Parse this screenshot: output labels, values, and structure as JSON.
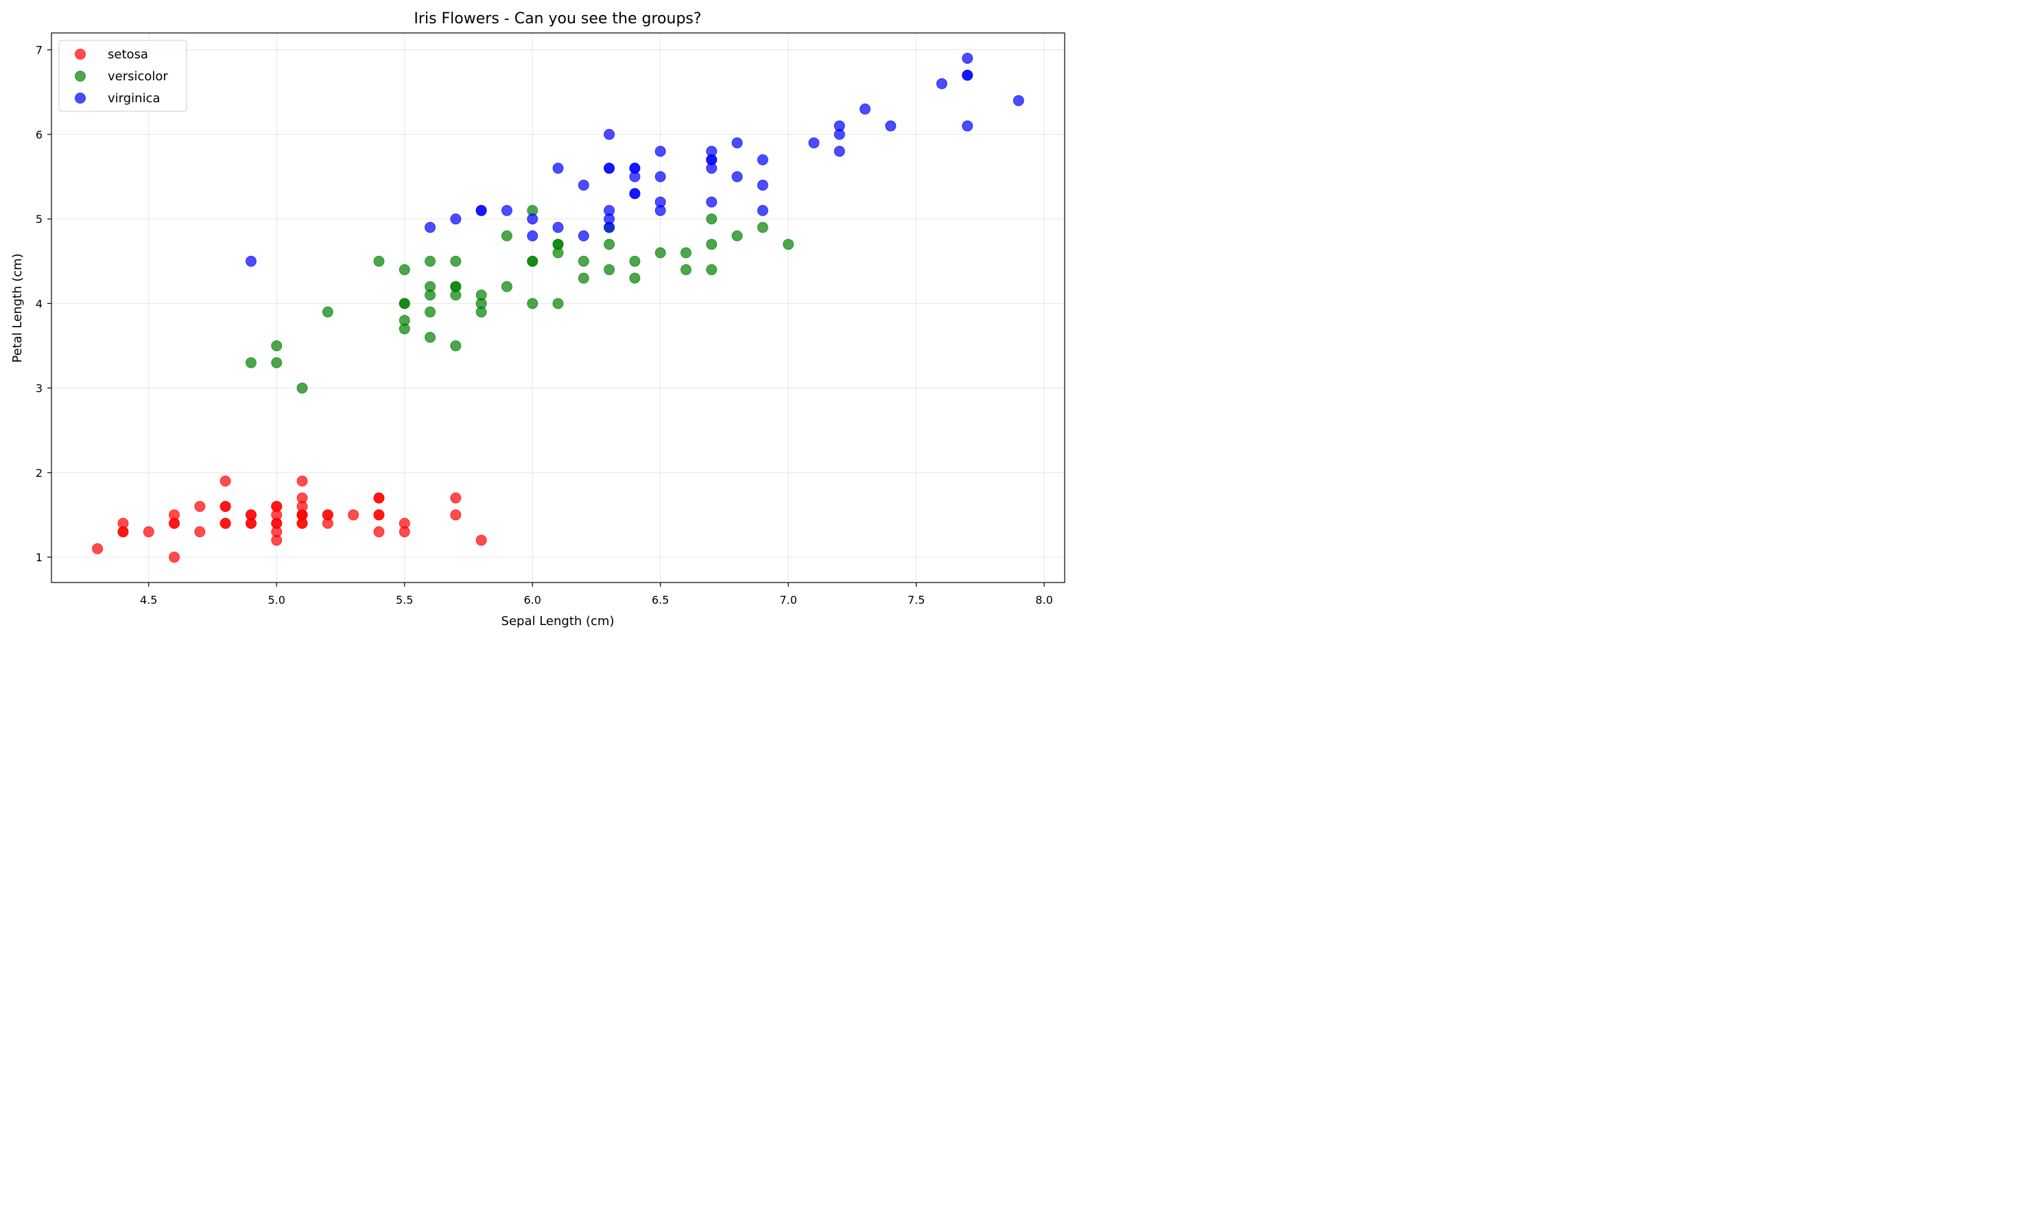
{
  "chart_data": {
    "type": "scatter",
    "title": "Iris Flowers - Can you see the groups?",
    "xlabel": "Sepal Length (cm)",
    "ylabel": "Petal Length (cm)",
    "xlim": [
      4.12,
      8.08
    ],
    "ylim": [
      0.7,
      7.2
    ],
    "xticks": [
      4.5,
      5.0,
      5.5,
      6.0,
      6.5,
      7.0,
      7.5,
      8.0
    ],
    "xtick_labels": [
      "4.5",
      "5.0",
      "5.5",
      "6.0",
      "6.5",
      "7.0",
      "7.5",
      "8.0"
    ],
    "yticks": [
      1,
      2,
      3,
      4,
      5,
      6,
      7
    ],
    "ytick_labels": [
      "1",
      "2",
      "3",
      "4",
      "5",
      "6",
      "7"
    ],
    "grid": true,
    "legend_position": "top-left",
    "series": [
      {
        "name": "setosa",
        "color": "#ff0000",
        "points": [
          [
            4.3,
            1.1
          ],
          [
            4.4,
            1.4
          ],
          [
            4.4,
            1.3
          ],
          [
            4.4,
            1.3
          ],
          [
            4.5,
            1.3
          ],
          [
            4.6,
            1.5
          ],
          [
            4.6,
            1.4
          ],
          [
            4.6,
            1.4
          ],
          [
            4.6,
            1.0
          ],
          [
            4.7,
            1.6
          ],
          [
            4.7,
            1.3
          ],
          [
            4.8,
            1.9
          ],
          [
            4.8,
            1.6
          ],
          [
            4.8,
            1.6
          ],
          [
            4.8,
            1.4
          ],
          [
            4.8,
            1.4
          ],
          [
            4.9,
            1.5
          ],
          [
            4.9,
            1.5
          ],
          [
            4.9,
            1.4
          ],
          [
            4.9,
            1.4
          ],
          [
            5.0,
            1.6
          ],
          [
            5.0,
            1.6
          ],
          [
            5.0,
            1.5
          ],
          [
            5.0,
            1.4
          ],
          [
            5.0,
            1.4
          ],
          [
            5.0,
            1.3
          ],
          [
            5.0,
            1.2
          ],
          [
            5.1,
            1.9
          ],
          [
            5.1,
            1.7
          ],
          [
            5.1,
            1.6
          ],
          [
            5.1,
            1.5
          ],
          [
            5.1,
            1.5
          ],
          [
            5.1,
            1.5
          ],
          [
            5.1,
            1.4
          ],
          [
            5.1,
            1.4
          ],
          [
            5.2,
            1.5
          ],
          [
            5.2,
            1.5
          ],
          [
            5.2,
            1.4
          ],
          [
            5.3,
            1.5
          ],
          [
            5.4,
            1.7
          ],
          [
            5.4,
            1.7
          ],
          [
            5.4,
            1.5
          ],
          [
            5.4,
            1.5
          ],
          [
            5.4,
            1.3
          ],
          [
            5.5,
            1.4
          ],
          [
            5.5,
            1.3
          ],
          [
            5.7,
            1.7
          ],
          [
            5.7,
            1.5
          ],
          [
            5.8,
            1.2
          ]
        ]
      },
      {
        "name": "versicolor",
        "color": "#008000",
        "points": [
          [
            4.9,
            3.3
          ],
          [
            5.0,
            3.5
          ],
          [
            5.0,
            3.3
          ],
          [
            5.1,
            3.0
          ],
          [
            5.2,
            3.9
          ],
          [
            5.4,
            4.5
          ],
          [
            5.5,
            4.4
          ],
          [
            5.5,
            4.0
          ],
          [
            5.5,
            4.0
          ],
          [
            5.5,
            3.8
          ],
          [
            5.5,
            3.7
          ],
          [
            5.6,
            4.5
          ],
          [
            5.6,
            4.2
          ],
          [
            5.6,
            4.1
          ],
          [
            5.6,
            3.9
          ],
          [
            5.6,
            3.6
          ],
          [
            5.7,
            4.5
          ],
          [
            5.7,
            4.2
          ],
          [
            5.7,
            4.2
          ],
          [
            5.7,
            4.1
          ],
          [
            5.7,
            3.5
          ],
          [
            5.8,
            4.1
          ],
          [
            5.8,
            4.0
          ],
          [
            5.8,
            3.9
          ],
          [
            5.9,
            4.8
          ],
          [
            5.9,
            4.2
          ],
          [
            6.0,
            5.1
          ],
          [
            6.0,
            4.5
          ],
          [
            6.0,
            4.5
          ],
          [
            6.0,
            4.0
          ],
          [
            6.1,
            4.7
          ],
          [
            6.1,
            4.7
          ],
          [
            6.1,
            4.6
          ],
          [
            6.1,
            4.0
          ],
          [
            6.2,
            4.5
          ],
          [
            6.2,
            4.3
          ],
          [
            6.3,
            4.9
          ],
          [
            6.3,
            4.7
          ],
          [
            6.3,
            4.4
          ],
          [
            6.4,
            4.5
          ],
          [
            6.4,
            4.3
          ],
          [
            6.5,
            4.6
          ],
          [
            6.6,
            4.6
          ],
          [
            6.6,
            4.4
          ],
          [
            6.7,
            5.0
          ],
          [
            6.7,
            4.7
          ],
          [
            6.7,
            4.4
          ],
          [
            6.8,
            4.8
          ],
          [
            6.9,
            4.9
          ],
          [
            7.0,
            4.7
          ]
        ]
      },
      {
        "name": "virginica",
        "color": "#0000ff",
        "points": [
          [
            4.9,
            4.5
          ],
          [
            5.6,
            4.9
          ],
          [
            5.7,
            5.0
          ],
          [
            5.8,
            5.1
          ],
          [
            5.8,
            5.1
          ],
          [
            5.9,
            5.1
          ],
          [
            6.0,
            5.0
          ],
          [
            6.0,
            4.8
          ],
          [
            6.1,
            5.6
          ],
          [
            6.1,
            4.9
          ],
          [
            6.2,
            5.4
          ],
          [
            6.2,
            4.8
          ],
          [
            6.3,
            6.0
          ],
          [
            6.3,
            5.6
          ],
          [
            6.3,
            5.6
          ],
          [
            6.3,
            5.1
          ],
          [
            6.3,
            5.0
          ],
          [
            6.3,
            4.9
          ],
          [
            6.4,
            5.6
          ],
          [
            6.4,
            5.6
          ],
          [
            6.4,
            5.5
          ],
          [
            6.4,
            5.3
          ],
          [
            6.4,
            5.3
          ],
          [
            6.5,
            5.8
          ],
          [
            6.5,
            5.5
          ],
          [
            6.5,
            5.2
          ],
          [
            6.5,
            5.1
          ],
          [
            6.7,
            5.8
          ],
          [
            6.7,
            5.7
          ],
          [
            6.7,
            5.7
          ],
          [
            6.7,
            5.6
          ],
          [
            6.7,
            5.2
          ],
          [
            6.8,
            5.9
          ],
          [
            6.8,
            5.5
          ],
          [
            6.9,
            5.7
          ],
          [
            6.9,
            5.4
          ],
          [
            6.9,
            5.1
          ],
          [
            7.1,
            5.9
          ],
          [
            7.2,
            6.1
          ],
          [
            7.2,
            6.0
          ],
          [
            7.2,
            5.8
          ],
          [
            7.3,
            6.3
          ],
          [
            7.4,
            6.1
          ],
          [
            7.6,
            6.6
          ],
          [
            7.7,
            6.9
          ],
          [
            7.7,
            6.7
          ],
          [
            7.7,
            6.7
          ],
          [
            7.7,
            6.1
          ],
          [
            7.9,
            6.4
          ]
        ]
      }
    ]
  }
}
